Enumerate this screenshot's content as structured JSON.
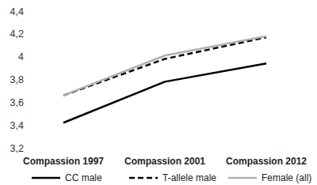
{
  "chart_data": {
    "type": "line",
    "categories": [
      "Compassion 1997",
      "Compassion 2001",
      "Compassion 2012"
    ],
    "series": [
      {
        "name": "CC male",
        "color": "#000000",
        "line_style": "solid",
        "values": [
          3.42,
          3.78,
          3.94
        ]
      },
      {
        "name": "T-allele male",
        "color": "#000000",
        "line_style": "dashed",
        "values": [
          3.66,
          3.98,
          4.17
        ]
      },
      {
        "name": "Female (all)",
        "color": "#b0b0b0",
        "line_style": "solid",
        "values": [
          3.66,
          4.01,
          4.18
        ]
      }
    ],
    "ylim": [
      3.2,
      4.4
    ],
    "yticks": [
      {
        "value": 3.2,
        "label": "3,2"
      },
      {
        "value": 3.4,
        "label": "3,4"
      },
      {
        "value": 3.6,
        "label": "3,6"
      },
      {
        "value": 3.8,
        "label": "3,8"
      },
      4,
      {
        "value": 4.2,
        "label": "4,2"
      },
      {
        "value": 4.4,
        "label": "4,4"
      }
    ],
    "grid": false,
    "legend": "bottom"
  }
}
